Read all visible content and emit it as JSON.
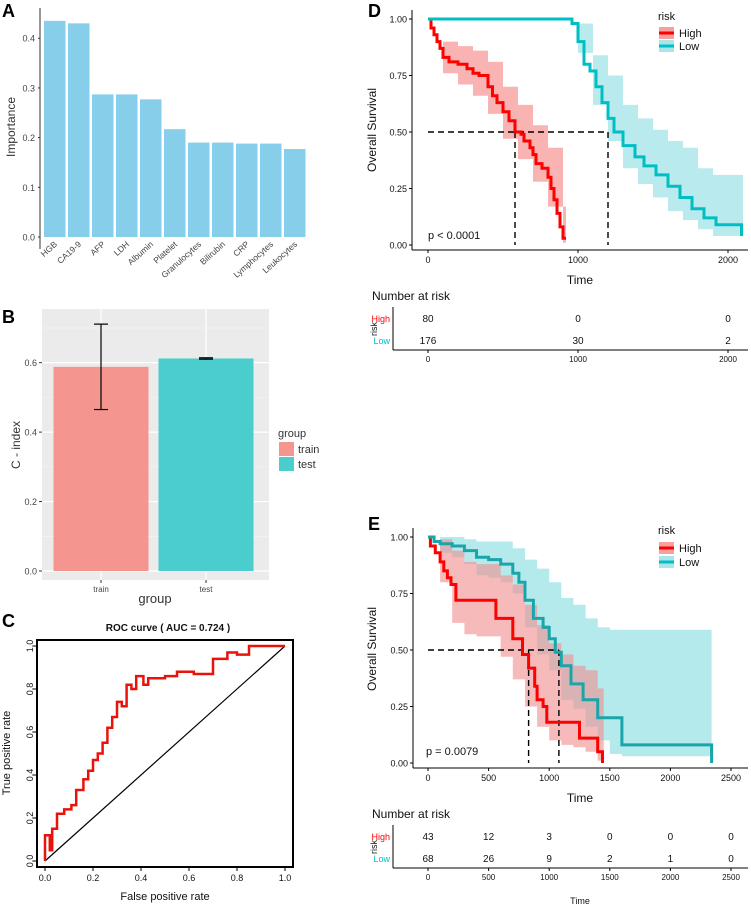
{
  "colors": {
    "bar": "#87CEEB",
    "train": "#F4958F",
    "test": "#4BCDCD",
    "high": "#FF0000",
    "low": "#00BFC4",
    "high_band": "#F8A0A0",
    "low_band": "#A8E6EA",
    "panel_bg": "#EBEBEB"
  },
  "chart_data": [
    {
      "panel": "A",
      "type": "bar",
      "ylabel": "Importance",
      "ylim": [
        0,
        0.45
      ],
      "yticks": [
        "0.0",
        "0.1",
        "0.2",
        "0.3",
        "0.4"
      ],
      "categories": [
        "HGB",
        "CA19-9",
        "AFP",
        "LDH",
        "Albumin",
        "Platelet",
        "Granulocytes",
        "Bilirubin",
        "CRP",
        "Lymphocytes",
        "Leukocytes"
      ],
      "values": [
        0.435,
        0.43,
        0.287,
        0.287,
        0.277,
        0.217,
        0.19,
        0.19,
        0.188,
        0.188,
        0.177
      ]
    },
    {
      "panel": "B",
      "type": "bar",
      "xlabel": "group",
      "ylabel": "C - index",
      "ylim": [
        0,
        0.75
      ],
      "yticks": [
        "0.0",
        "0.2",
        "0.4",
        "0.6"
      ],
      "categories": [
        "train",
        "test"
      ],
      "values": [
        0.588,
        0.612
      ],
      "error_low": [
        0.465,
        0.61
      ],
      "error_high": [
        0.711,
        0.614
      ],
      "legend_title": "group",
      "legend": [
        "train",
        "test"
      ]
    },
    {
      "panel": "C",
      "type": "line",
      "title": "ROC curve ( AUC =  0.724 )",
      "xlabel": "False positive rate",
      "ylabel": "True positive rate",
      "xticks": [
        "0.0",
        "0.2",
        "0.4",
        "0.6",
        "0.8",
        "1.0"
      ],
      "yticks": [
        "0.0",
        "0.2",
        "0.4",
        "0.6",
        "0.8",
        "1.0"
      ],
      "roc": [
        [
          0,
          0
        ],
        [
          0,
          0.12
        ],
        [
          0.02,
          0.12
        ],
        [
          0.02,
          0.05
        ],
        [
          0.03,
          0.05
        ],
        [
          0.03,
          0.15
        ],
        [
          0.05,
          0.15
        ],
        [
          0.05,
          0.22
        ],
        [
          0.08,
          0.22
        ],
        [
          0.08,
          0.24
        ],
        [
          0.11,
          0.24
        ],
        [
          0.11,
          0.26
        ],
        [
          0.13,
          0.26
        ],
        [
          0.13,
          0.33
        ],
        [
          0.16,
          0.33
        ],
        [
          0.16,
          0.38
        ],
        [
          0.18,
          0.38
        ],
        [
          0.18,
          0.42
        ],
        [
          0.2,
          0.42
        ],
        [
          0.2,
          0.47
        ],
        [
          0.22,
          0.47
        ],
        [
          0.22,
          0.5
        ],
        [
          0.24,
          0.5
        ],
        [
          0.24,
          0.55
        ],
        [
          0.26,
          0.55
        ],
        [
          0.26,
          0.62
        ],
        [
          0.28,
          0.62
        ],
        [
          0.28,
          0.67
        ],
        [
          0.3,
          0.67
        ],
        [
          0.3,
          0.74
        ],
        [
          0.32,
          0.74
        ],
        [
          0.32,
          0.72
        ],
        [
          0.34,
          0.72
        ],
        [
          0.34,
          0.82
        ],
        [
          0.36,
          0.82
        ],
        [
          0.36,
          0.8
        ],
        [
          0.38,
          0.8
        ],
        [
          0.38,
          0.86
        ],
        [
          0.41,
          0.86
        ],
        [
          0.41,
          0.82
        ],
        [
          0.43,
          0.82
        ],
        [
          0.43,
          0.85
        ],
        [
          0.5,
          0.85
        ],
        [
          0.5,
          0.86
        ],
        [
          0.55,
          0.86
        ],
        [
          0.55,
          0.88
        ],
        [
          0.62,
          0.88
        ],
        [
          0.62,
          0.87
        ],
        [
          0.7,
          0.87
        ],
        [
          0.7,
          0.94
        ],
        [
          0.76,
          0.94
        ],
        [
          0.76,
          0.97
        ],
        [
          0.8,
          0.97
        ],
        [
          0.8,
          0.96
        ],
        [
          0.85,
          0.96
        ],
        [
          0.85,
          1.0
        ],
        [
          1.0,
          1.0
        ]
      ]
    },
    {
      "panel": "D",
      "type": "line",
      "xlabel": "Time",
      "ylabel": "Overall Survival",
      "xlim": [
        0,
        2100
      ],
      "xticks": [
        "0",
        "1000",
        "2000"
      ],
      "yticks": [
        "0.00",
        "0.25",
        "0.50",
        "0.75",
        "1.00"
      ],
      "legend_title": "risk",
      "legend": [
        "High",
        "Low"
      ],
      "pvalue": "p < 0.0001",
      "medians": [
        580,
        1200
      ],
      "high": [
        [
          0,
          1
        ],
        [
          20,
          0.96
        ],
        [
          40,
          0.93
        ],
        [
          60,
          0.9
        ],
        [
          80,
          0.87
        ],
        [
          100,
          0.83
        ],
        [
          140,
          0.81
        ],
        [
          200,
          0.8
        ],
        [
          260,
          0.78
        ],
        [
          300,
          0.76
        ],
        [
          340,
          0.75
        ],
        [
          400,
          0.7
        ],
        [
          430,
          0.66
        ],
        [
          460,
          0.63
        ],
        [
          500,
          0.59
        ],
        [
          540,
          0.55
        ],
        [
          580,
          0.5
        ],
        [
          620,
          0.49
        ],
        [
          640,
          0.46
        ],
        [
          680,
          0.43
        ],
        [
          700,
          0.4
        ],
        [
          720,
          0.36
        ],
        [
          760,
          0.34
        ],
        [
          800,
          0.3
        ],
        [
          820,
          0.25
        ],
        [
          840,
          0.2
        ],
        [
          860,
          0.14
        ],
        [
          880,
          0.08
        ],
        [
          900,
          0.03
        ],
        [
          920,
          0.03
        ]
      ],
      "high_ci": [
        [
          0,
          1,
          1
        ],
        [
          100,
          0.76,
          0.9
        ],
        [
          200,
          0.71,
          0.88
        ],
        [
          300,
          0.66,
          0.86
        ],
        [
          400,
          0.58,
          0.81
        ],
        [
          500,
          0.47,
          0.7
        ],
        [
          600,
          0.38,
          0.62
        ],
        [
          700,
          0.28,
          0.53
        ],
        [
          800,
          0.17,
          0.43
        ],
        [
          900,
          0.01,
          0.17
        ],
        [
          920,
          0.01,
          0.17
        ]
      ],
      "low": [
        [
          0,
          1
        ],
        [
          900,
          1
        ],
        [
          960,
          0.98
        ],
        [
          1000,
          0.9
        ],
        [
          1040,
          0.8
        ],
        [
          1080,
          0.77
        ],
        [
          1120,
          0.7
        ],
        [
          1160,
          0.63
        ],
        [
          1200,
          0.56
        ],
        [
          1240,
          0.5
        ],
        [
          1300,
          0.44
        ],
        [
          1380,
          0.39
        ],
        [
          1440,
          0.35
        ],
        [
          1520,
          0.31
        ],
        [
          1600,
          0.26
        ],
        [
          1680,
          0.21
        ],
        [
          1760,
          0.16
        ],
        [
          1840,
          0.12
        ],
        [
          1920,
          0.09
        ],
        [
          2000,
          0.09
        ],
        [
          2080,
          0.09
        ],
        [
          2090,
          0.04
        ]
      ],
      "low_ci": [
        [
          0,
          1,
          1
        ],
        [
          900,
          1,
          1
        ],
        [
          1000,
          0.85,
          0.98
        ],
        [
          1100,
          0.62,
          0.84
        ],
        [
          1200,
          0.46,
          0.75
        ],
        [
          1300,
          0.34,
          0.62
        ],
        [
          1400,
          0.27,
          0.56
        ],
        [
          1500,
          0.21,
          0.51
        ],
        [
          1600,
          0.15,
          0.46
        ],
        [
          1700,
          0.11,
          0.43
        ],
        [
          1800,
          0.07,
          0.34
        ],
        [
          1900,
          0.04,
          0.31
        ],
        [
          2000,
          0.04,
          0.31
        ],
        [
          2100,
          0.04,
          0.31
        ]
      ],
      "risk_table": {
        "title": "Number at risk",
        "ylabel": "risk",
        "groups": [
          "High",
          "Low"
        ],
        "times": [
          "0",
          "1000",
          "2000"
        ],
        "rows": [
          [
            "80",
            "0",
            "0"
          ],
          [
            "176",
            "30",
            "2"
          ]
        ],
        "xlabel": "Time"
      }
    },
    {
      "panel": "E",
      "type": "line",
      "xlabel": "Time",
      "ylabel": "Overall Survival",
      "xlim": [
        0,
        2500
      ],
      "xticks": [
        "0",
        "500",
        "1000",
        "1500",
        "2000",
        "2500"
      ],
      "yticks": [
        "0.00",
        "0.25",
        "0.50",
        "0.75",
        "1.00"
      ],
      "legend_title": "risk",
      "legend": [
        "High",
        "Low"
      ],
      "pvalue": "p = 0.0079",
      "medians": [
        830,
        1080
      ],
      "high": [
        [
          0,
          1
        ],
        [
          20,
          0.96
        ],
        [
          60,
          0.93
        ],
        [
          100,
          0.89
        ],
        [
          130,
          0.85
        ],
        [
          160,
          0.82
        ],
        [
          190,
          0.79
        ],
        [
          230,
          0.72
        ],
        [
          300,
          0.72
        ],
        [
          400,
          0.72
        ],
        [
          500,
          0.72
        ],
        [
          560,
          0.64
        ],
        [
          650,
          0.64
        ],
        [
          700,
          0.55
        ],
        [
          780,
          0.48
        ],
        [
          830,
          0.42
        ],
        [
          880,
          0.34
        ],
        [
          900,
          0.28
        ],
        [
          950,
          0.25
        ],
        [
          980,
          0.18
        ],
        [
          1050,
          0.18
        ],
        [
          1150,
          0.18
        ],
        [
          1250,
          0.11
        ],
        [
          1350,
          0.11
        ],
        [
          1400,
          0.05
        ],
        [
          1440,
          0.0
        ]
      ],
      "high_ci": [
        [
          0,
          1,
          1
        ],
        [
          100,
          0.8,
          0.99
        ],
        [
          200,
          0.62,
          0.94
        ],
        [
          300,
          0.57,
          0.89
        ],
        [
          400,
          0.56,
          0.88
        ],
        [
          500,
          0.56,
          0.88
        ],
        [
          600,
          0.47,
          0.83
        ],
        [
          700,
          0.37,
          0.79
        ],
        [
          800,
          0.25,
          0.7
        ],
        [
          900,
          0.16,
          0.61
        ],
        [
          1000,
          0.1,
          0.53
        ],
        [
          1100,
          0.08,
          0.48
        ],
        [
          1200,
          0.07,
          0.43
        ],
        [
          1300,
          0.05,
          0.41
        ],
        [
          1400,
          0.01,
          0.33
        ],
        [
          1450,
          0.0,
          0.33
        ]
      ],
      "low": [
        [
          0,
          1
        ],
        [
          50,
          0.98
        ],
        [
          100,
          0.97
        ],
        [
          200,
          0.96
        ],
        [
          300,
          0.94
        ],
        [
          400,
          0.91
        ],
        [
          500,
          0.9
        ],
        [
          600,
          0.88
        ],
        [
          700,
          0.84
        ],
        [
          750,
          0.8
        ],
        [
          800,
          0.72
        ],
        [
          870,
          0.64
        ],
        [
          950,
          0.6
        ],
        [
          1000,
          0.55
        ],
        [
          1050,
          0.49
        ],
        [
          1100,
          0.43
        ],
        [
          1180,
          0.35
        ],
        [
          1280,
          0.28
        ],
        [
          1400,
          0.2
        ],
        [
          1600,
          0.08
        ],
        [
          1800,
          0.08
        ],
        [
          2000,
          0.08
        ],
        [
          2200,
          0.08
        ],
        [
          2300,
          0.08
        ],
        [
          2340,
          0.0
        ]
      ],
      "low_ci": [
        [
          0,
          1,
          1
        ],
        [
          100,
          0.93,
          1
        ],
        [
          200,
          0.91,
          1
        ],
        [
          300,
          0.88,
          0.99
        ],
        [
          400,
          0.83,
          0.98
        ],
        [
          500,
          0.82,
          0.98
        ],
        [
          600,
          0.8,
          0.98
        ],
        [
          700,
          0.75,
          0.95
        ],
        [
          800,
          0.6,
          0.9
        ],
        [
          900,
          0.48,
          0.86
        ],
        [
          1000,
          0.41,
          0.8
        ],
        [
          1100,
          0.28,
          0.73
        ],
        [
          1200,
          0.24,
          0.7
        ],
        [
          1300,
          0.16,
          0.64
        ],
        [
          1400,
          0.1,
          0.6
        ],
        [
          1500,
          0.04,
          0.59
        ],
        [
          1600,
          0.03,
          0.59
        ],
        [
          2000,
          0.03,
          0.59
        ],
        [
          2340,
          0.03,
          0.59
        ]
      ],
      "risk_table": {
        "title": "Number at risk",
        "ylabel": "risk",
        "groups": [
          "High",
          "Low"
        ],
        "times": [
          "0",
          "500",
          "1000",
          "1500",
          "2000",
          "2500"
        ],
        "rows": [
          [
            "43",
            "12",
            "3",
            "0",
            "0",
            "0"
          ],
          [
            "68",
            "26",
            "9",
            "2",
            "1",
            "0"
          ]
        ],
        "xlabel": "Time"
      }
    }
  ],
  "panel_labels": [
    "A",
    "B",
    "C",
    "D",
    "E"
  ]
}
